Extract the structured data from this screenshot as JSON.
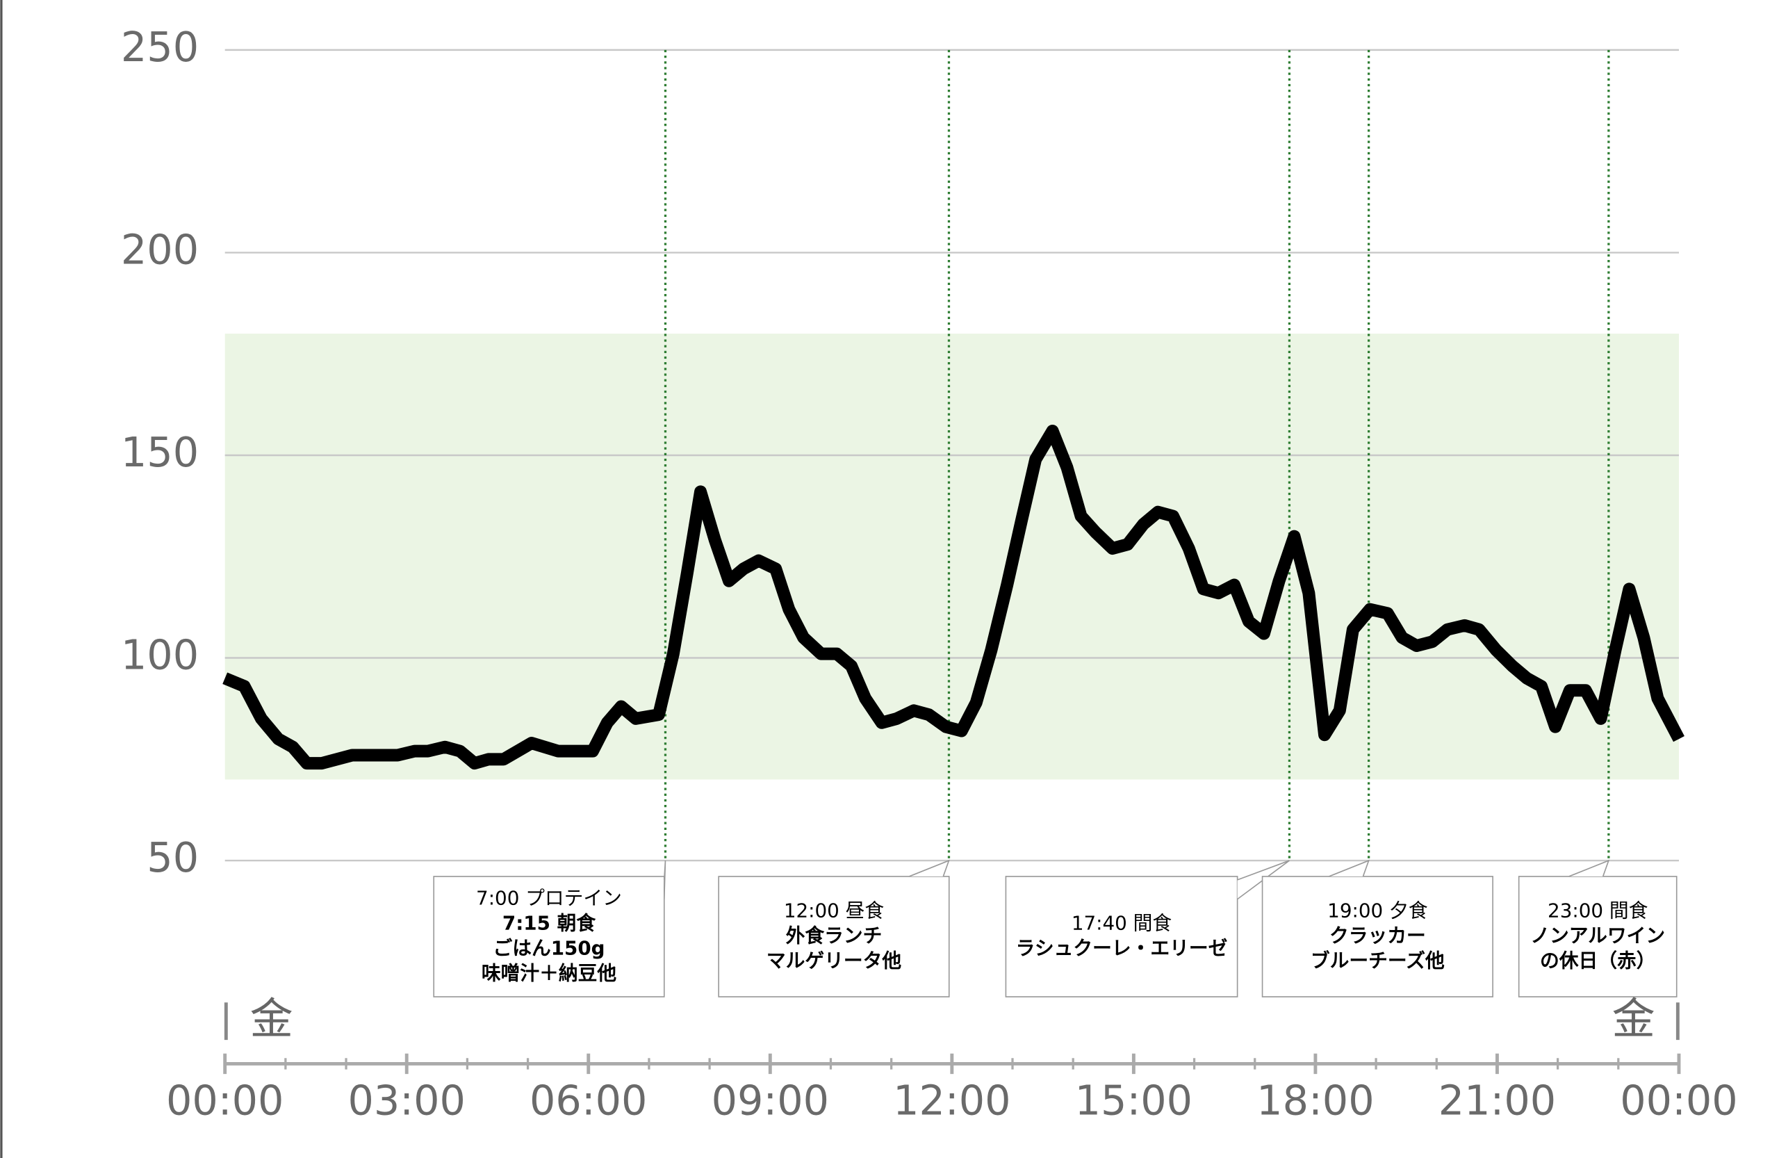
{
  "chart_data": {
    "type": "line",
    "x": [
      0,
      0.32,
      0.6,
      0.88,
      1.12,
      1.35,
      1.6,
      2.1,
      2.85,
      3.13,
      3.35,
      3.63,
      3.88,
      4.12,
      4.35,
      4.6,
      5.06,
      5.5,
      5.85,
      6.07,
      6.31,
      6.54,
      6.78,
      7.16,
      7.4,
      7.63,
      7.85,
      8.09,
      8.32,
      8.56,
      8.81,
      9.09,
      9.31,
      9.55,
      9.84,
      10.1,
      10.34,
      10.57,
      10.84,
      11.09,
      11.37,
      11.62,
      11.9,
      12.16,
      12.4,
      12.65,
      12.91,
      13.15,
      13.38,
      13.66,
      13.9,
      14.13,
      14.37,
      14.65,
      14.9,
      15.16,
      15.4,
      15.65,
      15.91,
      16.15,
      16.4,
      16.66,
      16.9,
      17.15,
      17.4,
      17.65,
      17.89,
      18.15,
      18.4,
      18.62,
      18.9,
      19.19,
      19.43,
      19.67,
      19.93,
      20.18,
      20.46,
      20.7,
      20.98,
      21.25,
      21.49,
      21.73,
      21.96,
      22.2,
      22.46,
      22.71,
      22.95,
      23.18,
      23.42,
      23.65,
      24
    ],
    "series": [
      {
        "color": "#000000",
        "values": [
          95,
          93,
          85,
          80,
          78,
          74,
          74,
          76,
          76,
          77,
          77,
          78,
          77,
          74,
          75,
          75,
          79,
          77,
          77,
          77,
          84,
          88,
          85,
          86,
          101,
          121,
          141,
          129,
          119,
          122,
          124,
          122,
          112,
          105,
          101,
          101,
          98,
          90,
          84,
          85,
          87,
          86,
          83,
          82,
          89,
          102,
          118,
          134,
          149,
          156,
          147,
          135,
          131,
          127,
          128,
          133,
          136,
          135,
          127,
          117,
          116,
          118,
          109,
          106,
          119,
          130,
          116,
          81,
          87,
          107,
          112,
          111,
          105,
          103,
          104,
          107,
          108,
          107,
          102,
          98,
          95,
          93,
          83,
          92,
          92,
          85,
          102,
          117,
          105,
          90,
          80
        ]
      }
    ],
    "xlim": [
      0,
      24
    ],
    "xticks": [
      {
        "value": 0,
        "label": "00:00"
      },
      {
        "value": 3,
        "label": "03:00"
      },
      {
        "value": 6,
        "label": "06:00"
      },
      {
        "value": 9,
        "label": "09:00"
      },
      {
        "value": 12,
        "label": "12:00"
      },
      {
        "value": 15,
        "label": "15:00"
      },
      {
        "value": 18,
        "label": "18:00"
      },
      {
        "value": 21,
        "label": "21:00"
      },
      {
        "value": 24,
        "label": "00:00"
      }
    ],
    "xminorticks": [
      0,
      1,
      2,
      3,
      4,
      5,
      6,
      7,
      8,
      9,
      10,
      11,
      12,
      13,
      14,
      15,
      16,
      17,
      18,
      19,
      20,
      21,
      22,
      23,
      24
    ],
    "ylim": [
      50,
      250
    ],
    "yticks": [
      50,
      100,
      150,
      200,
      250
    ],
    "grid": true,
    "target_range": [
      70,
      180
    ],
    "target_color": "#ebf5e4",
    "day_labels": [
      "金",
      "金"
    ],
    "annotations": [
      {
        "x": 7.27,
        "lines": [
          "7:00 プロテイン",
          "7:15 朝食",
          "ごはん150g",
          "味噌汁＋納豆他"
        ]
      },
      {
        "x": 11.95,
        "lines": [
          "12:00 昼食",
          "外食ランチ",
          "マルゲリータ他"
        ]
      },
      {
        "x": 17.57,
        "lines": [
          "17:40 間食",
          "ラシュクーレ・エリーゼ"
        ]
      },
      {
        "x": 18.88,
        "lines": [
          "19:00 夕食",
          "クラッカー",
          "ブルーチーズ他"
        ]
      },
      {
        "x": 22.84,
        "lines": [
          "23:00 間食",
          "ノンアルワイン",
          "の休日（赤）"
        ]
      }
    ],
    "annotation_color": "#2e7d32"
  }
}
